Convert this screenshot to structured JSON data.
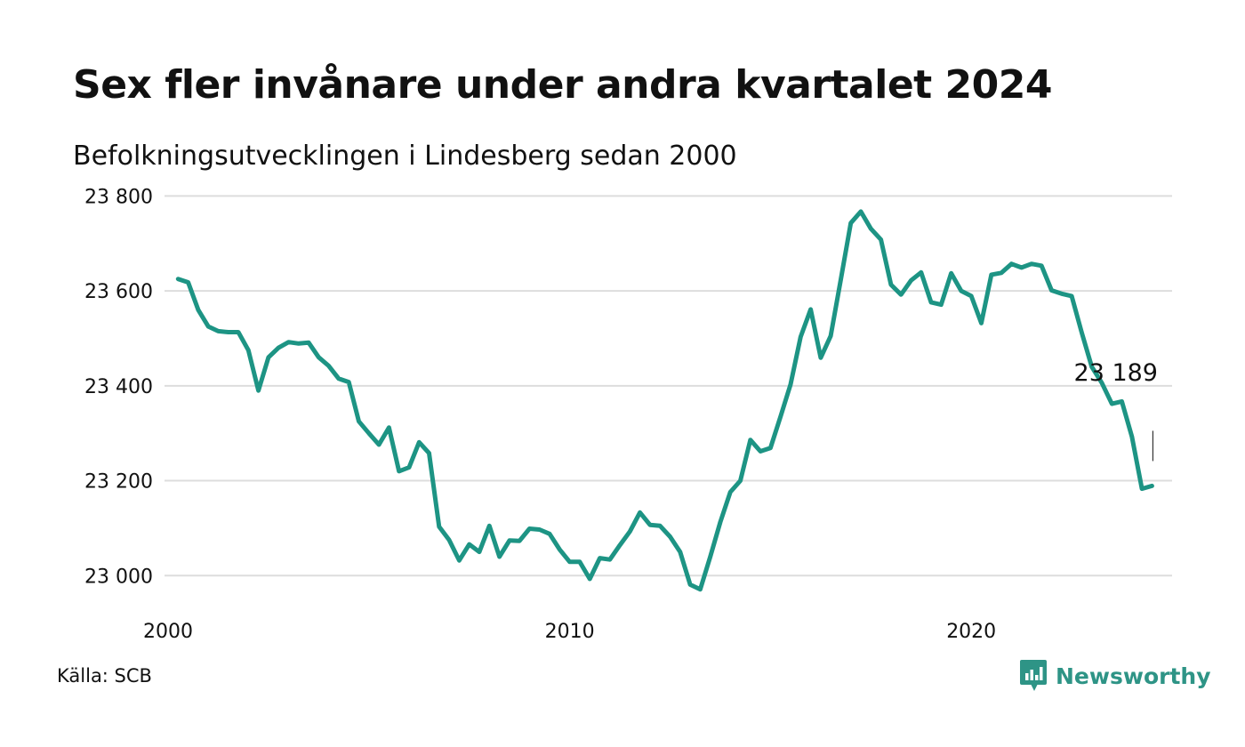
{
  "title": "Sex fler invånare under andra kvartalet 2024",
  "subtitle": "Befolkningsutvecklingen i Lindesberg sedan 2000",
  "source": "Källa: SCB",
  "brand": {
    "name": "Newsworthy",
    "icon": "newsworthy-logo-icon",
    "color": "#2e9486"
  },
  "colors": {
    "line": "#1d9484",
    "grid": "#dddddd",
    "text": "#111111"
  },
  "chart_data": {
    "type": "line",
    "title": "Sex fler invånare under andra kvartalet 2024",
    "subtitle": "Befolkningsutvecklingen i Lindesberg sedan 2000",
    "xlabel": "",
    "ylabel": "",
    "x_start": 2000.25,
    "x_step": 0.25,
    "xlim": [
      2000,
      2025
    ],
    "ylim": [
      22920,
      23810
    ],
    "x_ticks": [
      2000,
      2010,
      2020
    ],
    "x_tick_labels": [
      "2000",
      "2010",
      "2020"
    ],
    "y_ticks": [
      23000,
      23200,
      23400,
      23600,
      23800
    ],
    "y_tick_labels": [
      "23 000",
      "23 200",
      "23 400",
      "23 600",
      "23 800"
    ],
    "grid": true,
    "last_value_label": "23 189",
    "series": [
      {
        "name": "",
        "values": [
          23625,
          23618,
          23560,
          23525,
          23515,
          23513,
          23513,
          23475,
          23390,
          23460,
          23480,
          23492,
          23489,
          23491,
          23460,
          23442,
          23415,
          23408,
          23325,
          23300,
          23276,
          23312,
          23220,
          23228,
          23281,
          23258,
          23103,
          23075,
          23032,
          23066,
          23050,
          23105,
          23040,
          23074,
          23073,
          23099,
          23097,
          23088,
          23055,
          23029,
          23029,
          22993,
          23037,
          23034,
          23064,
          23093,
          23133,
          23107,
          23105,
          23082,
          23050,
          22981,
          22971,
          23040,
          23113,
          23176,
          23200,
          23286,
          23262,
          23269,
          23335,
          23403,
          23503,
          23561,
          23459,
          23505,
          23623,
          23743,
          23767,
          23731,
          23708,
          23613,
          23592,
          23622,
          23639,
          23576,
          23571,
          23637,
          23600,
          23589,
          23532,
          23634,
          23638,
          23657,
          23649,
          23657,
          23653,
          23601,
          23594,
          23589,
          23512,
          23440,
          23406,
          23362,
          23367,
          23293,
          23183,
          23189
        ]
      }
    ]
  }
}
